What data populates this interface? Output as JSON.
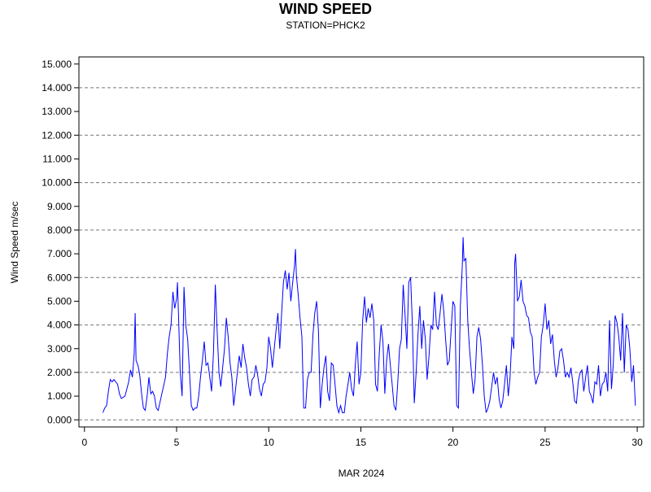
{
  "chart_data": {
    "type": "line",
    "title": "WIND SPEED",
    "subtitle": "STATION=PHCK2",
    "y_label": "Wind Speed m/sec",
    "x_label": "MAR 2024",
    "color": "#0000ff",
    "xlim": [
      -0.3,
      30.35
    ],
    "xticks": [
      0,
      5,
      10,
      15,
      20,
      25,
      30
    ],
    "ylim": [
      -0.3,
      15.3
    ],
    "yticks": [
      {
        "value": 0,
        "label": "0.000"
      },
      {
        "value": 1,
        "label": "1.000"
      },
      {
        "value": 2,
        "label": "2.000"
      },
      {
        "value": 3,
        "label": "3.000"
      },
      {
        "value": 4,
        "label": "4.000"
      },
      {
        "value": 5,
        "label": "5.000"
      },
      {
        "value": 6,
        "label": "6.000"
      },
      {
        "value": 7,
        "label": "7.000"
      },
      {
        "value": 8,
        "label": "8.000"
      },
      {
        "value": 9,
        "label": "9.000"
      },
      {
        "value": 10,
        "label": "10.000"
      },
      {
        "value": 11,
        "label": "11.000"
      },
      {
        "value": 12,
        "label": "12.000"
      },
      {
        "value": 13,
        "label": "13.000"
      },
      {
        "value": 14,
        "label": "14.000"
      },
      {
        "value": 15,
        "label": "15.000"
      }
    ],
    "ygrid": [
      0,
      2,
      4,
      6,
      8,
      10,
      12,
      14
    ],
    "x": [
      1.0,
      1.1,
      1.2,
      1.3,
      1.4,
      1.5,
      1.6,
      1.8,
      1.9,
      2.0,
      2.2,
      2.4,
      2.5,
      2.6,
      2.7,
      2.75,
      2.8,
      2.9,
      3.0,
      3.1,
      3.2,
      3.3,
      3.4,
      3.5,
      3.6,
      3.7,
      3.8,
      3.9,
      4.0,
      4.2,
      4.4,
      4.5,
      4.6,
      4.7,
      4.8,
      4.9,
      5.0,
      5.05,
      5.1,
      5.2,
      5.3,
      5.4,
      5.5,
      5.6,
      5.7,
      5.8,
      5.9,
      6.0,
      6.1,
      6.2,
      6.3,
      6.4,
      6.5,
      6.6,
      6.7,
      6.8,
      6.9,
      7.0,
      7.1,
      7.2,
      7.3,
      7.4,
      7.5,
      7.6,
      7.7,
      7.8,
      7.9,
      8.0,
      8.1,
      8.2,
      8.3,
      8.4,
      8.5,
      8.6,
      8.7,
      8.8,
      8.9,
      9.0,
      9.1,
      9.2,
      9.3,
      9.4,
      9.5,
      9.6,
      9.7,
      9.8,
      9.9,
      10.0,
      10.1,
      10.2,
      10.3,
      10.4,
      10.5,
      10.6,
      10.7,
      10.8,
      10.9,
      11.0,
      11.1,
      11.2,
      11.3,
      11.4,
      11.45,
      11.5,
      11.6,
      11.7,
      11.8,
      11.9,
      12.0,
      12.1,
      12.2,
      12.3,
      12.4,
      12.5,
      12.6,
      12.7,
      12.8,
      12.9,
      13.0,
      13.1,
      13.2,
      13.3,
      13.4,
      13.5,
      13.6,
      13.7,
      13.8,
      13.9,
      14.0,
      14.1,
      14.2,
      14.3,
      14.4,
      14.5,
      14.6,
      14.7,
      14.8,
      14.9,
      15.0,
      15.1,
      15.2,
      15.3,
      15.4,
      15.5,
      15.6,
      15.7,
      15.8,
      15.9,
      16.0,
      16.1,
      16.2,
      16.3,
      16.4,
      16.5,
      16.6,
      16.7,
      16.8,
      16.9,
      17.0,
      17.1,
      17.2,
      17.3,
      17.4,
      17.5,
      17.6,
      17.7,
      17.8,
      17.9,
      18.0,
      18.1,
      18.2,
      18.3,
      18.4,
      18.5,
      18.6,
      18.7,
      18.8,
      18.9,
      19.0,
      19.1,
      19.2,
      19.3,
      19.4,
      19.5,
      19.6,
      19.7,
      19.8,
      19.9,
      20.0,
      20.1,
      20.2,
      20.3,
      20.4,
      20.5,
      20.55,
      20.6,
      20.7,
      20.8,
      20.9,
      21.0,
      21.1,
      21.2,
      21.3,
      21.4,
      21.5,
      21.6,
      21.7,
      21.8,
      21.9,
      22.0,
      22.1,
      22.2,
      22.3,
      22.4,
      22.5,
      22.6,
      22.7,
      22.8,
      22.9,
      23.0,
      23.1,
      23.2,
      23.3,
      23.35,
      23.4,
      23.5,
      23.6,
      23.7,
      23.8,
      23.9,
      24.0,
      24.1,
      24.2,
      24.3,
      24.4,
      24.5,
      24.6,
      24.7,
      24.8,
      24.9,
      25.0,
      25.1,
      25.2,
      25.3,
      25.4,
      25.5,
      25.6,
      25.7,
      25.8,
      25.9,
      26.0,
      26.1,
      26.2,
      26.3,
      26.4,
      26.5,
      26.6,
      26.7,
      26.8,
      26.9,
      27.0,
      27.1,
      27.2,
      27.3,
      27.4,
      27.5,
      27.6,
      27.7,
      27.8,
      27.9,
      28.0,
      28.1,
      28.2,
      28.3,
      28.4,
      28.5,
      28.6,
      28.7,
      28.8,
      28.9,
      29.0,
      29.1,
      29.2,
      29.3,
      29.4,
      29.5,
      29.6,
      29.7,
      29.8,
      29.9
    ],
    "values": [
      0.3,
      0.5,
      0.6,
      1.2,
      1.7,
      1.6,
      1.7,
      1.5,
      1.1,
      0.9,
      1.0,
      1.6,
      2.1,
      1.8,
      2.8,
      4.5,
      2.5,
      2.3,
      1.9,
      1.1,
      0.5,
      0.4,
      1.0,
      1.8,
      1.1,
      1.2,
      1.0,
      0.5,
      0.4,
      1.1,
      1.8,
      2.8,
      3.5,
      4.0,
      5.4,
      4.7,
      5.1,
      5.8,
      4.5,
      2.0,
      1.0,
      5.6,
      4.0,
      3.4,
      2.0,
      0.6,
      0.4,
      0.5,
      0.5,
      1.0,
      1.8,
      2.5,
      3.3,
      2.3,
      2.4,
      1.8,
      1.2,
      2.8,
      5.7,
      3.8,
      2.0,
      1.4,
      2.2,
      3.0,
      4.3,
      3.5,
      2.4,
      1.8,
      0.6,
      1.3,
      2.0,
      2.7,
      2.2,
      3.2,
      2.6,
      2.2,
      1.5,
      1.0,
      1.7,
      1.8,
      2.3,
      1.9,
      1.3,
      1.0,
      1.5,
      1.6,
      2.2,
      3.5,
      3.0,
      2.2,
      3.0,
      3.8,
      4.5,
      3.0,
      4.5,
      5.8,
      6.3,
      5.5,
      6.2,
      5.0,
      5.8,
      6.5,
      7.2,
      6.1,
      5.3,
      4.3,
      3.5,
      0.5,
      0.5,
      1.7,
      2.0,
      2.0,
      3.6,
      4.5,
      5.0,
      3.7,
      0.5,
      1.5,
      2.2,
      2.7,
      1.2,
      0.8,
      2.4,
      2.3,
      1.5,
      0.6,
      0.3,
      0.6,
      0.3,
      0.3,
      1.0,
      1.5,
      2.0,
      1.3,
      1.0,
      2.3,
      3.3,
      1.5,
      2.0,
      4.2,
      5.2,
      4.1,
      4.7,
      4.3,
      4.9,
      4.2,
      1.5,
      1.2,
      2.8,
      4.0,
      3.3,
      1.1,
      2.5,
      3.2,
      2.3,
      1.5,
      0.6,
      0.4,
      1.5,
      3.0,
      3.4,
      5.7,
      4.4,
      3.0,
      5.8,
      6.0,
      4.0,
      0.7,
      2.0,
      3.6,
      4.8,
      3.0,
      4.2,
      3.4,
      1.7,
      2.7,
      4.0,
      3.8,
      5.4,
      4.0,
      3.8,
      4.5,
      5.3,
      4.6,
      3.4,
      2.3,
      2.5,
      3.8,
      5.0,
      4.8,
      0.6,
      0.5,
      4.8,
      6.4,
      7.7,
      6.7,
      6.8,
      4.2,
      3.0,
      2.0,
      1.1,
      1.7,
      3.5,
      3.9,
      3.4,
      2.3,
      1.0,
      0.3,
      0.5,
      0.8,
      1.4,
      2.0,
      1.5,
      1.8,
      0.9,
      0.5,
      0.8,
      1.5,
      2.3,
      1.0,
      1.8,
      3.5,
      3.0,
      6.6,
      7.0,
      5.0,
      5.2,
      5.9,
      5.0,
      4.8,
      4.4,
      4.3,
      3.7,
      3.5,
      2.0,
      1.5,
      1.8,
      2.0,
      3.5,
      4.0,
      4.9,
      3.8,
      4.2,
      3.2,
      3.6,
      2.5,
      1.8,
      2.2,
      2.9,
      3.0,
      2.5,
      1.8,
      2.0,
      1.8,
      2.2,
      1.6,
      0.8,
      0.7,
      1.6,
      2.0,
      2.1,
      1.2,
      1.8,
      2.3,
      1.2,
      1.0,
      0.7,
      1.6,
      1.5,
      2.3,
      1.0,
      1.5,
      1.6,
      2.0,
      1.2,
      4.2,
      1.3,
      2.3,
      4.4,
      4.1,
      3.5,
      2.5,
      4.5,
      2.0,
      4.0,
      3.8,
      3.0,
      1.6,
      2.3,
      0.6
    ]
  }
}
